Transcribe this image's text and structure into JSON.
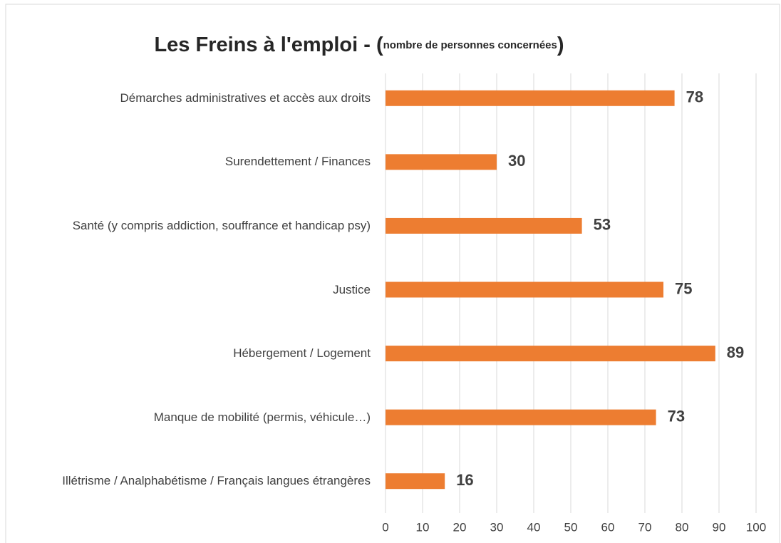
{
  "chart_data": {
    "type": "bar",
    "orientation": "horizontal",
    "title_parts": [
      "Les Freins à l'emploi - (",
      "nombre de personnes concernées",
      ")"
    ],
    "categories": [
      "Démarches administratives et accès aux droits",
      "Surendettement / Finances",
      "Santé (y compris addiction, souffrance et handicap psy)",
      "Justice",
      "Hébergement / Logement",
      "Manque de mobilité (permis, véhicule…)",
      "Illétrisme / Analphabétisme / Français langues étrangères"
    ],
    "values": [
      78,
      30,
      53,
      75,
      89,
      73,
      16
    ],
    "color": "#ed7d31",
    "xlim": [
      0,
      100
    ],
    "xticks": [
      0,
      10,
      20,
      30,
      40,
      50,
      60,
      70,
      80,
      90,
      100
    ],
    "grid": true
  }
}
